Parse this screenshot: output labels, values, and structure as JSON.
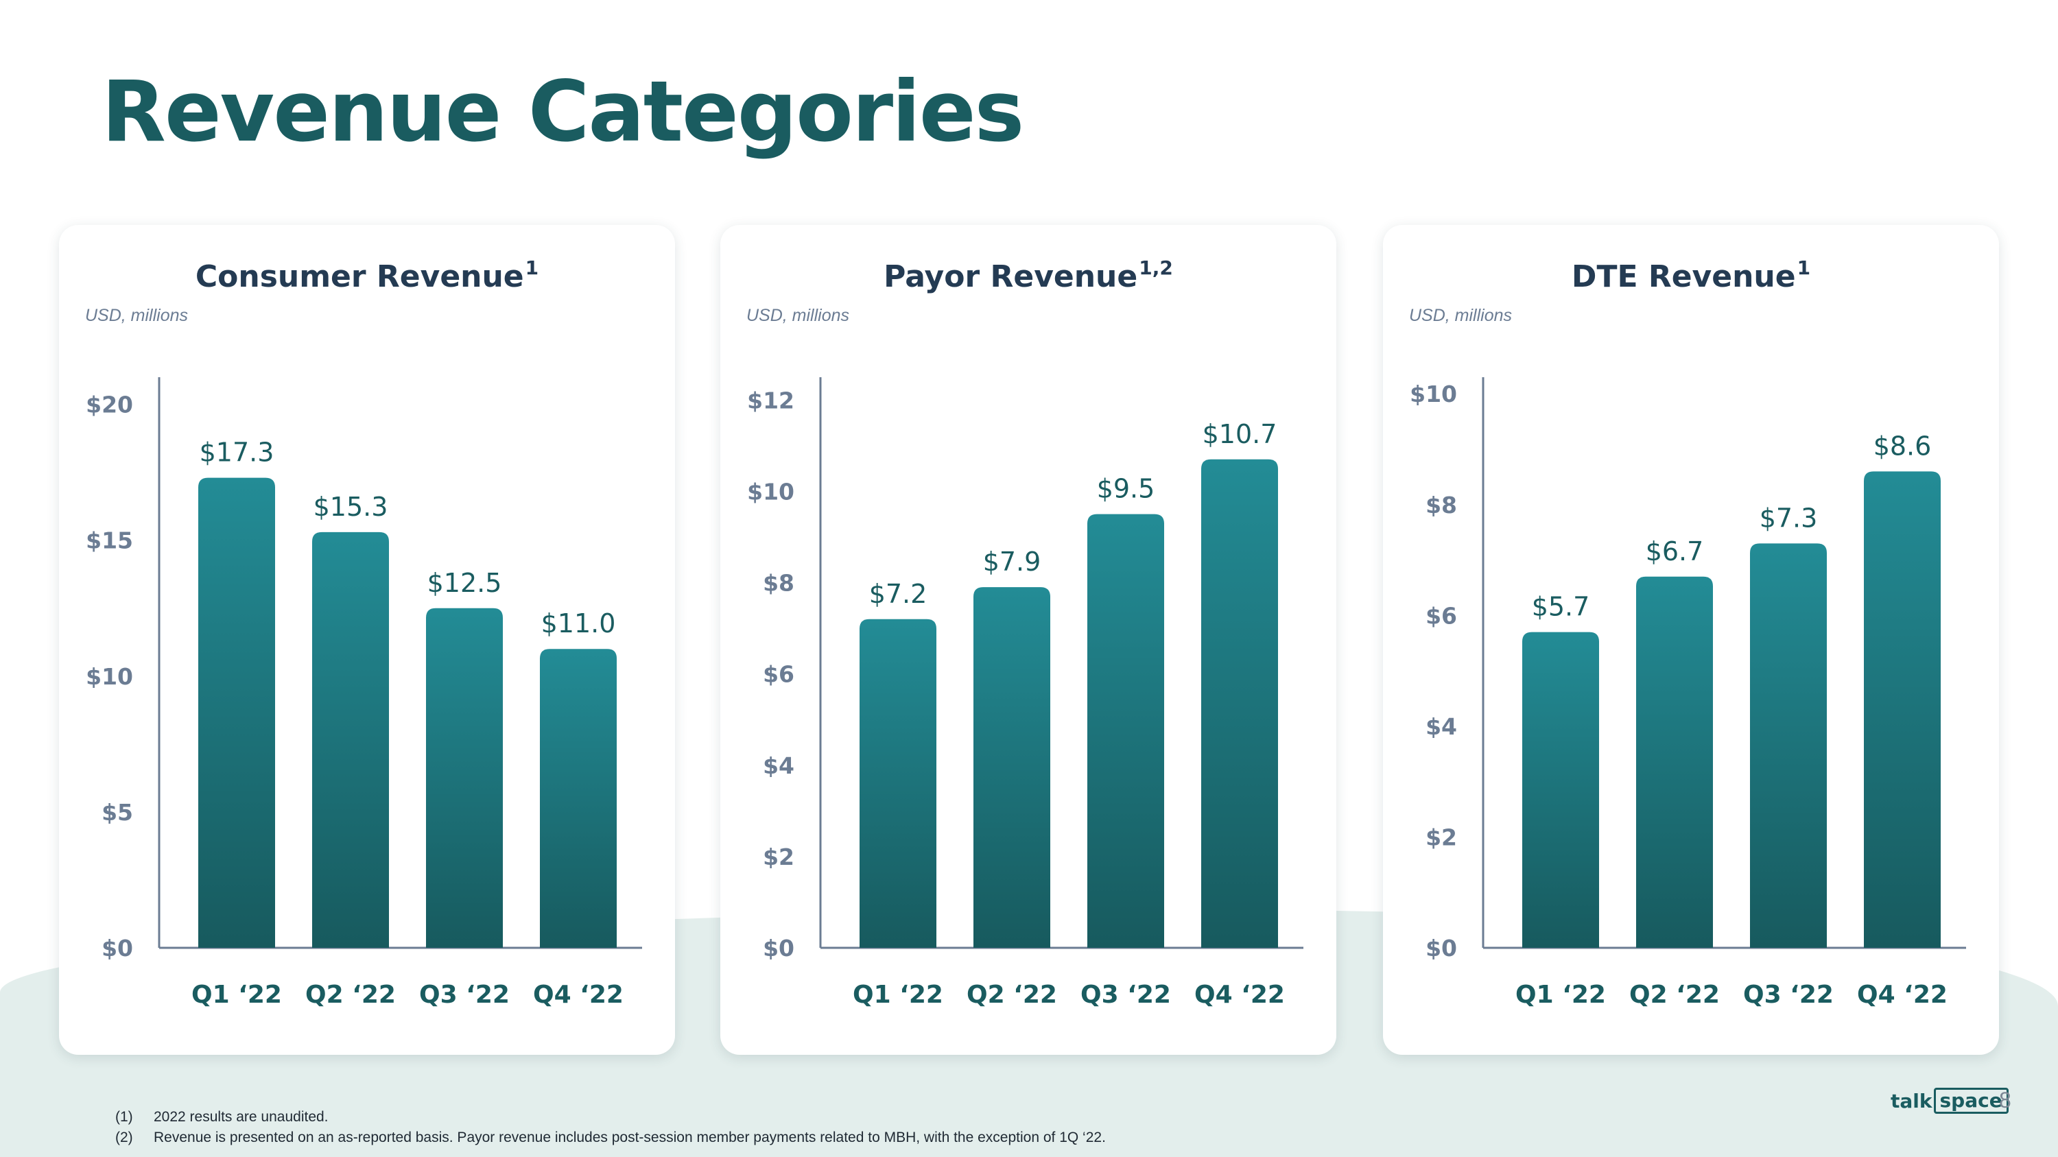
{
  "page": {
    "title": "Revenue Categories",
    "page_number": "8",
    "brand": {
      "left": "talk",
      "boxed": "space"
    }
  },
  "footnotes": [
    {
      "num": "(1)",
      "text": "2022 results are unaudited."
    },
    {
      "num": "(2)",
      "text": "Revenue is presented on an as-reported basis. Payor revenue includes post-session member payments related to MBH, with the exception of 1Q ‘22."
    }
  ],
  "colors": {
    "accent": "#1a5c60",
    "bar_top": "#238c96",
    "bar_bottom": "#175a5e",
    "axis": "#6b7c93"
  },
  "chart_data": [
    {
      "type": "bar",
      "title": "Consumer Revenue",
      "title_sup": "1",
      "units": "USD, millions",
      "categories": [
        "Q1 ‘22",
        "Q2 ‘22",
        "Q3 ‘22",
        "Q4 ‘22"
      ],
      "values": [
        17.3,
        15.3,
        12.5,
        11.0
      ],
      "value_labels": [
        "$17.3",
        "$15.3",
        "$12.5",
        "$11.0"
      ],
      "yticks": [
        0,
        5,
        10,
        15,
        20
      ],
      "ytick_labels": [
        "$0",
        "$5",
        "$10",
        "$15",
        "$20"
      ],
      "ylim": [
        0,
        21
      ]
    },
    {
      "type": "bar",
      "title": "Payor Revenue",
      "title_sup": "1,2",
      "units": "USD, millions",
      "categories": [
        "Q1 ‘22",
        "Q2 ‘22",
        "Q3 ‘22",
        "Q4 ‘22"
      ],
      "values": [
        7.2,
        7.9,
        9.5,
        10.7
      ],
      "value_labels": [
        "$7.2",
        "$7.9",
        "$9.5",
        "$10.7"
      ],
      "yticks": [
        0,
        2,
        4,
        6,
        8,
        10,
        12
      ],
      "ytick_labels": [
        "$0",
        "$2",
        "$4",
        "$6",
        "$8",
        "$10",
        "$12"
      ],
      "ylim": [
        0,
        12.5
      ]
    },
    {
      "type": "bar",
      "title": "DTE Revenue",
      "title_sup": "1",
      "units": "USD, millions",
      "categories": [
        "Q1 ‘22",
        "Q2 ‘22",
        "Q3 ‘22",
        "Q4 ‘22"
      ],
      "values": [
        5.7,
        6.7,
        7.3,
        8.6
      ],
      "value_labels": [
        "$5.7",
        "$6.7",
        "$7.3",
        "$8.6"
      ],
      "yticks": [
        0,
        2,
        4,
        6,
        8,
        10
      ],
      "ytick_labels": [
        "$0",
        "$2",
        "$4",
        "$6",
        "$8",
        "$10"
      ],
      "ylim": [
        0,
        10.3
      ]
    }
  ]
}
